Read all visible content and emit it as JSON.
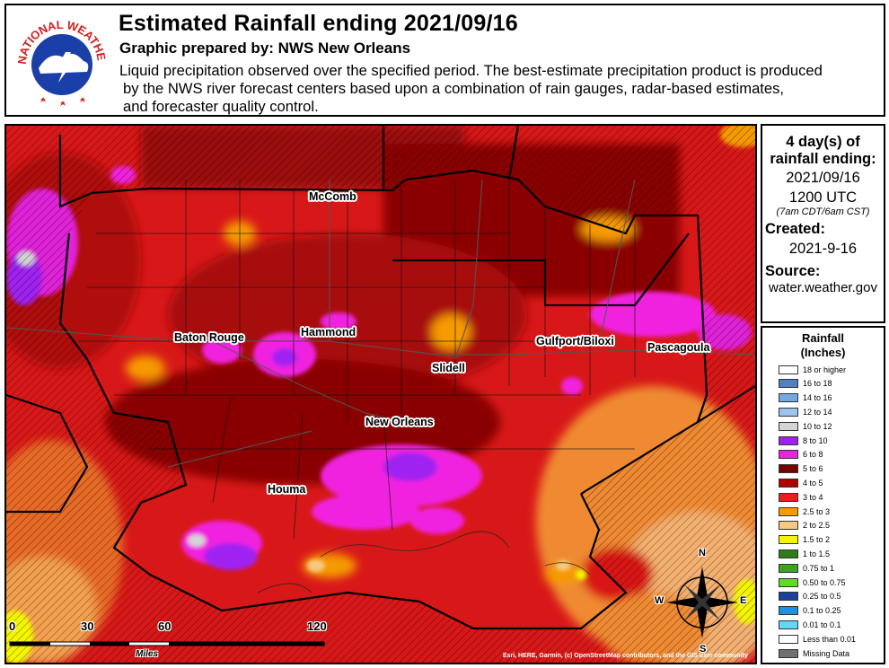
{
  "header": {
    "logo_text": "NATIONAL WEATHER SERVICE",
    "title": "Estimated Rainfall ending 2021/09/16",
    "prepared": "Graphic prepared by: NWS New Orleans",
    "desc_line1": "Liquid precipitation observed over the specified period.  The best-estimate precipitation product is produced",
    "desc_line2": "by the NWS river forecast centers based upon a combination of rain gauges, radar-based estimates,",
    "desc_line3": "and forecaster quality control."
  },
  "info": {
    "period_line1": "4 day(s) of",
    "period_line2": "rainfall ending:",
    "date": "2021/09/16",
    "time": "1200 UTC",
    "local_time": "(7am CDT/6am CST)",
    "created_label": "Created:",
    "created_date": "2021-9-16",
    "source_label": "Source:",
    "source_value": "water.weather.gov"
  },
  "legend": {
    "title_line1": "Rainfall",
    "title_line2": "(Inches)",
    "items": [
      {
        "label": "18 or higher",
        "color": "#ffffff"
      },
      {
        "label": "16 to 18",
        "color": "#4f80c0"
      },
      {
        "label": "14 to 16",
        "color": "#74a8e0"
      },
      {
        "label": "12 to 14",
        "color": "#9cc4ec"
      },
      {
        "label": "10 to 12",
        "color": "#d4d4d4"
      },
      {
        "label": "8 to 10",
        "color": "#a020f0"
      },
      {
        "label": "6 to 8",
        "color": "#f020e0"
      },
      {
        "label": "5 to 6",
        "color": "#7a0000"
      },
      {
        "label": "4 to 5",
        "color": "#b00000"
      },
      {
        "label": "3 to 4",
        "color": "#ee1c1c"
      },
      {
        "label": "2.5 to 3",
        "color": "#f59a00"
      },
      {
        "label": "2 to 2.5",
        "color": "#f7c882"
      },
      {
        "label": "1.5 to 2",
        "color": "#f5f500"
      },
      {
        "label": "1 to 1.5",
        "color": "#2e7d16"
      },
      {
        "label": "0.75 to 1",
        "color": "#3ca41c"
      },
      {
        "label": "0.50 to 0.75",
        "color": "#58e020"
      },
      {
        "label": "0.25 to 0.5",
        "color": "#1a40a0"
      },
      {
        "label": "0.1 to 0.25",
        "color": "#2090e0"
      },
      {
        "label": "0.01 to 0.1",
        "color": "#60d8f8"
      },
      {
        "label": "Less than 0.01",
        "color": "#ffffff"
      },
      {
        "label": "Missing Data",
        "color": "#707070"
      }
    ]
  },
  "map": {
    "cities": [
      "McComb",
      "Baton Rouge",
      "Hammond",
      "Slidell",
      "Gulfport/Biloxi",
      "Pascagoula",
      "New Orleans",
      "Houma"
    ],
    "scale_labels": [
      "0",
      "30",
      "60",
      "120"
    ],
    "scale_units": "Miles",
    "compass": [
      "N",
      "S",
      "E",
      "W"
    ],
    "attribution": "Esri, HERE, Garmin, (c) OpenStreetMap contributors, and the GIS user community"
  }
}
